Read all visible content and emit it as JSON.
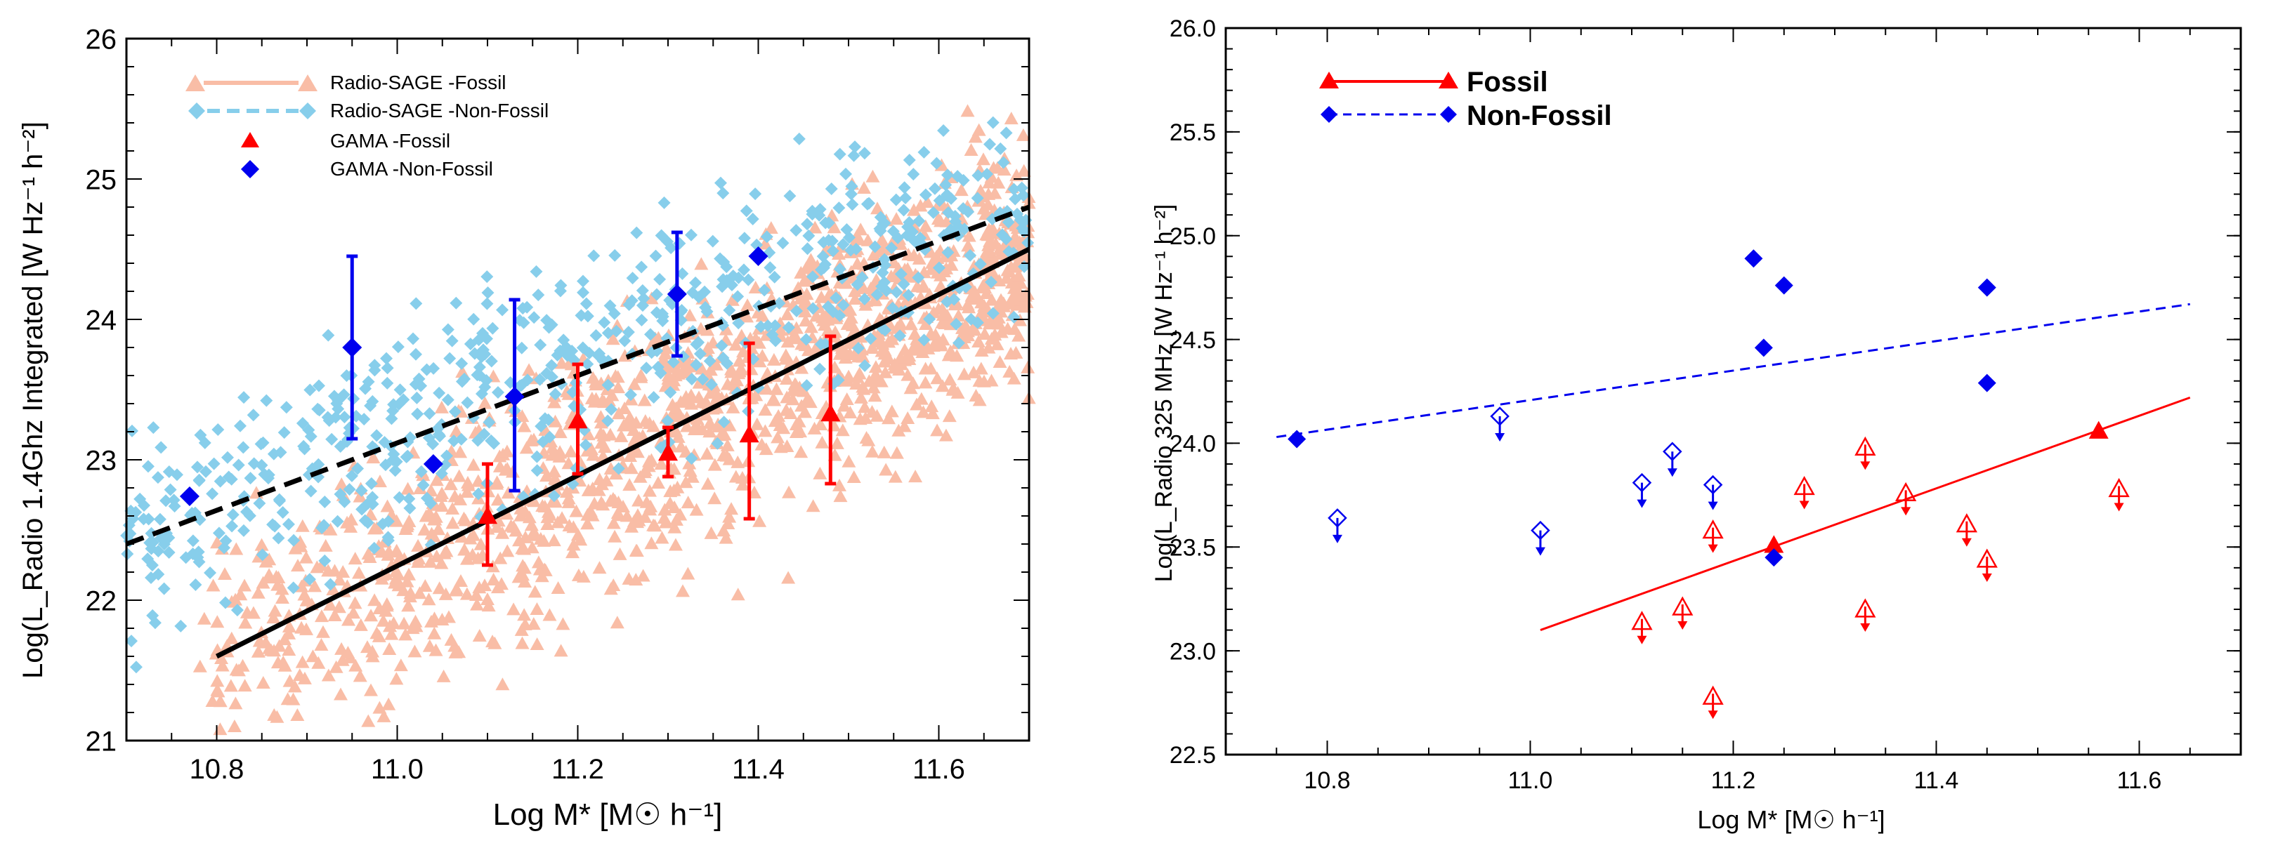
{
  "colors": {
    "sage_fossil": "#f9bda6",
    "sage_nonfossil": "#87ceeb",
    "gama_fossil": "#ff0000",
    "gama_nonfossil": "#0000ee",
    "fit": "#000000"
  },
  "chart_data": [
    {
      "type": "scatter",
      "xlabel": "Log M* [M☉ h⁻¹]",
      "ylabel": "Log(L_Radio 1.4Ghz Integrated [W Hz⁻¹ h⁻²]",
      "xlim": [
        10.7,
        11.7
      ],
      "ylim": [
        21,
        26
      ],
      "xticks": [
        "10.8",
        "11.0",
        "11.2",
        "11.4",
        "11.6"
      ],
      "yticks": [
        "21",
        "22",
        "23",
        "24",
        "25",
        "26"
      ],
      "xtick_values": [
        10.8,
        11.0,
        11.2,
        11.4,
        11.6
      ],
      "ytick_values": [
        21,
        22,
        23,
        24,
        25,
        26
      ],
      "legend": [
        {
          "label": "Radio-SAGE -Fossil",
          "style": "solid-triangle",
          "color": "#f9bda6"
        },
        {
          "label": "Radio-SAGE -Non-Fossil",
          "style": "dashed-diamond",
          "color": "#87ceeb"
        },
        {
          "label": "GAMA -Fossil",
          "style": "triangle",
          "color": "#ff0000"
        },
        {
          "label": "GAMA -Non-Fossil",
          "style": "diamond",
          "color": "#0000ee"
        }
      ],
      "series": [
        {
          "name": "GAMA -Fossil",
          "points": [
            {
              "x": 11.1,
              "y": 22.6,
              "lo": 22.25,
              "hi": 22.97
            },
            {
              "x": 11.2,
              "y": 23.28,
              "lo": 22.9,
              "hi": 23.68
            },
            {
              "x": 11.3,
              "y": 23.05,
              "lo": 22.88,
              "hi": 23.23
            },
            {
              "x": 11.39,
              "y": 23.18,
              "lo": 22.58,
              "hi": 23.83
            },
            {
              "x": 11.48,
              "y": 23.33,
              "lo": 22.83,
              "hi": 23.88
            }
          ]
        },
        {
          "name": "GAMA -Non-Fossil",
          "points": [
            {
              "x": 10.77,
              "y": 22.74,
              "lo": 22.74,
              "hi": 22.74
            },
            {
              "x": 10.95,
              "y": 23.8,
              "lo": 23.15,
              "hi": 24.45
            },
            {
              "x": 11.04,
              "y": 22.97,
              "lo": 22.97,
              "hi": 22.97
            },
            {
              "x": 11.13,
              "y": 23.45,
              "lo": 22.78,
              "hi": 24.14
            },
            {
              "x": 11.31,
              "y": 24.18,
              "lo": 23.74,
              "hi": 24.62
            },
            {
              "x": 11.4,
              "y": 24.45,
              "lo": 24.45,
              "hi": 24.45
            }
          ]
        },
        {
          "name": "Fossil fit",
          "line": "solid",
          "x": [
            10.8,
            11.7
          ],
          "y": [
            21.6,
            24.5
          ]
        },
        {
          "name": "Non-Fossil fit",
          "line": "dashed",
          "x": [
            10.7,
            11.7
          ],
          "y": [
            22.4,
            24.8
          ]
        }
      ]
    },
    {
      "type": "scatter",
      "xlabel": "Log M* [M☉ h⁻¹]",
      "ylabel": "Log(L_Radio 325 MHz [W Hz⁻¹ h⁻²]",
      "xlim": [
        10.7,
        11.7
      ],
      "ylim": [
        22.5,
        26.0
      ],
      "xticks": [
        "10.8",
        "11.0",
        "11.2",
        "11.4",
        "11.6"
      ],
      "yticks": [
        "22.5",
        "23.0",
        "23.5",
        "24.0",
        "24.5",
        "25.0",
        "25.5",
        "26.0"
      ],
      "xtick_values": [
        10.8,
        11.0,
        11.2,
        11.4,
        11.6
      ],
      "ytick_values": [
        22.5,
        23.0,
        23.5,
        24.0,
        24.5,
        25.0,
        25.5,
        26.0
      ],
      "legend": [
        {
          "label": "Fossil",
          "style": "solid-triangle",
          "color": "#ff0000"
        },
        {
          "label": "Non-Fossil",
          "style": "dashed-diamond",
          "color": "#0000ee"
        }
      ],
      "series": [
        {
          "name": "Fossil detections",
          "marker": "triangle-filled",
          "x": [
            11.24,
            11.56
          ],
          "y": [
            23.51,
            24.06
          ]
        },
        {
          "name": "Fossil upper limits",
          "marker": "triangle-open-arrow",
          "x": [
            11.11,
            11.15,
            11.18,
            11.18,
            11.27,
            11.33,
            11.33,
            11.37,
            11.43,
            11.45,
            11.58
          ],
          "y": [
            23.14,
            23.21,
            23.58,
            22.78,
            23.79,
            23.98,
            23.2,
            23.76,
            23.61,
            23.44,
            23.78
          ]
        },
        {
          "name": "Non-Fossil detections",
          "marker": "diamond-filled",
          "x": [
            10.77,
            11.22,
            11.23,
            11.25,
            11.45,
            11.45,
            11.24
          ],
          "y": [
            24.02,
            24.89,
            24.46,
            24.76,
            24.75,
            24.29,
            23.45
          ]
        },
        {
          "name": "Non-Fossil upper limits",
          "marker": "diamond-open-arrow",
          "x": [
            10.81,
            10.97,
            11.01,
            11.11,
            11.14,
            11.18
          ],
          "y": [
            23.64,
            24.13,
            23.58,
            23.81,
            23.96,
            23.8
          ]
        },
        {
          "name": "Fossil fit",
          "line": "solid",
          "x": [
            11.01,
            11.65
          ],
          "y": [
            23.1,
            24.22
          ]
        },
        {
          "name": "Non-Fossil fit",
          "line": "dashed",
          "x": [
            10.75,
            11.65
          ],
          "y": [
            24.03,
            24.67
          ]
        }
      ]
    }
  ]
}
